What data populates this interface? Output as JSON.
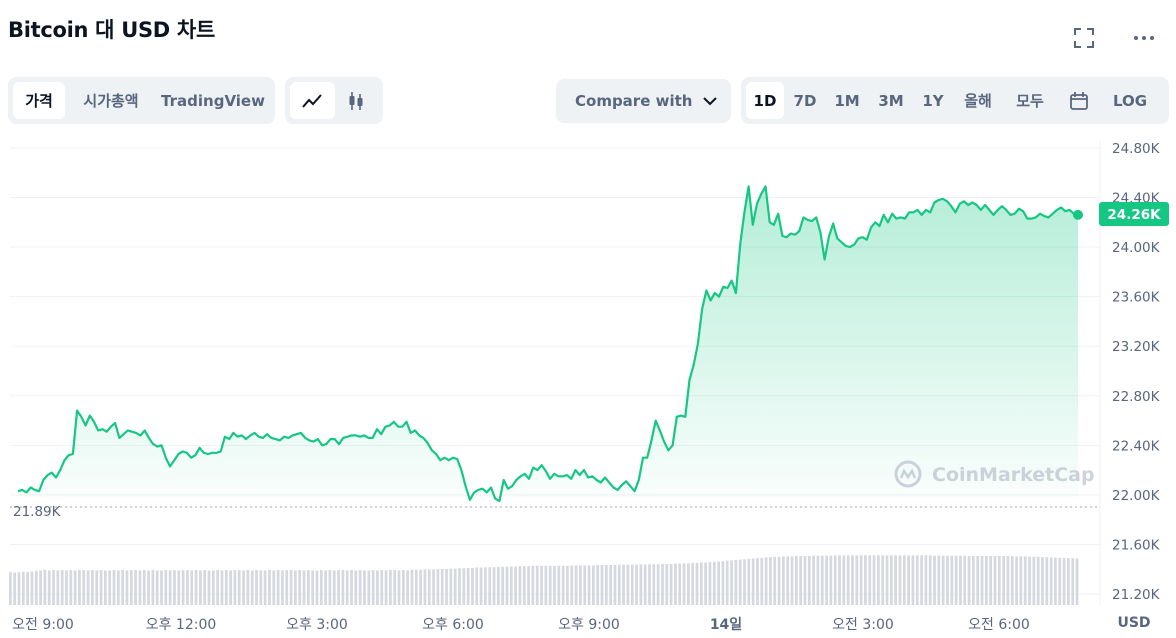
{
  "header": {
    "title": "Bitcoin 대 USD 차트"
  },
  "icons": {
    "fullscreen": "fullscreen-icon",
    "more": "more-dots-icon",
    "calendar": "calendar-icon",
    "line": "line-chart-icon",
    "candle": "candlestick-icon",
    "chevron": "chevron-down-icon"
  },
  "tabs": {
    "price": "가격",
    "marketcap": "시가총액",
    "tradingview": "TradingView"
  },
  "compare": {
    "label": "Compare with"
  },
  "ranges": [
    "1D",
    "7D",
    "1M",
    "3M",
    "1Y",
    "올해",
    "모두"
  ],
  "log_label": "LOG",
  "watermark": "CoinMarketCap",
  "colors": {
    "line": "#16c784",
    "fill_top": "#bdeed5",
    "badge": "#16c784",
    "text_muted": "#58667e"
  },
  "chart_data": {
    "type": "line",
    "x_ticks": [
      "오전 9:00",
      "오후 12:00",
      "오후 3:00",
      "오후 6:00",
      "오후 9:00",
      "14일",
      "오전 3:00",
      "오전 6:00"
    ],
    "y_ticks": [
      "24.80K",
      "24.40K",
      "24.00K",
      "23.60K",
      "23.20K",
      "22.80K",
      "22.40K",
      "22.00K",
      "21.60K",
      "21.20K"
    ],
    "ylim": [
      21.2,
      24.8
    ],
    "currency_label": "USD",
    "current_value_label": "24.26K",
    "min_value_label": "21.89K",
    "series": [
      {
        "price_k": [
          22.03,
          22.04,
          22.02,
          22.06,
          22.04,
          22.03,
          22.12,
          22.16,
          22.18,
          22.14,
          22.2,
          22.28,
          22.32,
          22.33,
          22.68,
          22.63,
          22.56,
          22.64,
          22.59,
          22.52,
          22.53,
          22.51,
          22.55,
          22.58,
          22.46,
          22.49,
          22.52,
          22.51,
          22.5,
          22.48,
          22.52,
          22.46,
          22.41,
          22.39,
          22.4,
          22.3,
          22.23,
          22.28,
          22.33,
          22.35,
          22.34,
          22.3,
          22.32,
          22.38,
          22.34,
          22.33,
          22.34,
          22.34,
          22.35,
          22.47,
          22.45,
          22.5,
          22.47,
          22.48,
          22.45,
          22.48,
          22.5,
          22.47,
          22.46,
          22.49,
          22.46,
          22.45,
          22.44,
          22.47,
          22.46,
          22.48,
          22.49,
          22.5,
          22.46,
          22.44,
          22.43,
          22.45,
          22.4,
          22.41,
          22.45,
          22.45,
          22.41,
          22.46,
          22.47,
          22.48,
          22.48,
          22.47,
          22.48,
          22.46,
          22.46,
          22.53,
          22.49,
          22.55,
          22.56,
          22.59,
          22.55,
          22.55,
          22.59,
          22.5,
          22.52,
          22.48,
          22.46,
          22.42,
          22.36,
          22.33,
          22.28,
          22.3,
          22.28,
          22.3,
          22.29,
          22.2,
          22.07,
          21.96,
          22.02,
          22.04,
          22.05,
          22.02,
          22.06,
          21.97,
          21.95,
          22.12,
          22.05,
          22.07,
          22.12,
          22.15,
          22.17,
          22.13,
          22.22,
          22.2,
          22.24,
          22.19,
          22.13,
          22.17,
          22.15,
          22.15,
          22.16,
          22.13,
          22.2,
          22.16,
          22.2,
          22.14,
          22.15,
          22.12,
          22.1,
          22.14,
          22.1,
          22.06,
          22.04,
          22.08,
          22.11,
          22.07,
          22.03,
          22.12,
          22.3,
          22.3,
          22.44,
          22.6,
          22.52,
          22.43,
          22.36,
          22.4,
          22.63,
          22.64,
          22.63,
          22.93,
          23.05,
          23.22,
          23.5,
          23.65,
          23.57,
          23.63,
          23.6,
          23.68,
          23.67,
          23.73,
          23.63,
          24.02,
          24.28,
          24.49,
          24.18,
          24.35,
          24.43,
          24.49,
          24.2,
          24.18,
          24.27,
          24.09,
          24.08,
          24.11,
          24.1,
          24.13,
          24.24,
          24.22,
          24.21,
          24.24,
          24.12,
          23.9,
          24.08,
          24.19,
          24.07,
          24.04,
          24.01,
          24.0,
          24.02,
          24.07,
          24.08,
          24.06,
          24.16,
          24.2,
          24.17,
          24.26,
          24.2,
          24.27,
          24.23,
          24.24,
          24.23,
          24.28,
          24.28,
          24.3,
          24.26,
          24.3,
          24.28,
          24.36,
          24.38,
          24.39,
          24.37,
          24.33,
          24.28,
          24.35,
          24.37,
          24.34,
          24.36,
          24.34,
          24.3,
          24.34,
          24.3,
          24.26,
          24.3,
          24.33,
          24.3,
          24.26,
          24.27,
          24.31,
          24.29,
          24.23,
          24.23,
          24.24,
          24.27,
          24.25,
          24.24,
          24.27,
          24.3,
          24.32,
          24.29,
          24.3,
          24.27,
          24.26
        ]
      },
      {
        "volume_rel": [
          0.91,
          0.9,
          0.91,
          0.92,
          0.92,
          0.93,
          0.95,
          0.96,
          0.98,
          0.96,
          0.97,
          0.96,
          0.97,
          0.96,
          0.97,
          0.96,
          0.97,
          0.97,
          0.96,
          0.97,
          0.96,
          0.97,
          0.96,
          0.96,
          0.97,
          0.96,
          0.97,
          0.96,
          0.97,
          0.97,
          0.96,
          0.97,
          0.96,
          0.97,
          0.96,
          0.96,
          0.97,
          0.96,
          0.97,
          0.96,
          0.97,
          0.97,
          0.96,
          0.97,
          0.96,
          0.97,
          0.96,
          0.96,
          0.97,
          0.96,
          0.97,
          0.96,
          0.97,
          0.97,
          0.96,
          0.97,
          0.96,
          0.97,
          0.96,
          0.96,
          0.97,
          0.96,
          0.97,
          0.96,
          0.97,
          0.97,
          0.96,
          0.97,
          0.96,
          0.97,
          0.96,
          0.96,
          0.97,
          0.96,
          0.97,
          0.96,
          0.97,
          0.97,
          0.96,
          0.97,
          0.96,
          0.97,
          0.96,
          0.96,
          0.97,
          0.96,
          0.97,
          0.96,
          0.97,
          0.97,
          0.96,
          0.97,
          0.96,
          0.98,
          0.98,
          0.98,
          0.99,
          0.99,
          0.99,
          1.0,
          1.0,
          1.0,
          1.01,
          1.01,
          1.02,
          1.02,
          1.03,
          1.03,
          1.04,
          1.04,
          1.05,
          1.05,
          1.05,
          1.06,
          1.06,
          1.07,
          1.07,
          1.07,
          1.08,
          1.08,
          1.08,
          1.09,
          1.09,
          1.09,
          1.09,
          1.09,
          1.09,
          1.09,
          1.09,
          1.09,
          1.1,
          1.1,
          1.1,
          1.1,
          1.1,
          1.1,
          1.11,
          1.11,
          1.11,
          1.11,
          1.11,
          1.12,
          1.12,
          1.12,
          1.12,
          1.12,
          1.13,
          1.13,
          1.13,
          1.13,
          1.13,
          1.14,
          1.14,
          1.14,
          1.15,
          1.15,
          1.16,
          1.16,
          1.17,
          1.17,
          1.18,
          1.18,
          1.19,
          1.2,
          1.21,
          1.22,
          1.23,
          1.24,
          1.25,
          1.26,
          1.27,
          1.28,
          1.29,
          1.3,
          1.31,
          1.32,
          1.33,
          1.34,
          1.34,
          1.35,
          1.35,
          1.35,
          1.36,
          1.36,
          1.36,
          1.36,
          1.37,
          1.37,
          1.37,
          1.37,
          1.37,
          1.38,
          1.38,
          1.38,
          1.38,
          1.38,
          1.38,
          1.38,
          1.38,
          1.38,
          1.38,
          1.38,
          1.38,
          1.38,
          1.38,
          1.38,
          1.38,
          1.38,
          1.38,
          1.38,
          1.38,
          1.38,
          1.38,
          1.38,
          1.37,
          1.37,
          1.37,
          1.37,
          1.37,
          1.37,
          1.37,
          1.37,
          1.36,
          1.36,
          1.36,
          1.36,
          1.36,
          1.36,
          1.36,
          1.36,
          1.36,
          1.36,
          1.36,
          1.35,
          1.35,
          1.35,
          1.34,
          1.34,
          1.34,
          1.33,
          1.33,
          1.32,
          1.32,
          1.31,
          1.31,
          1.3,
          1.3,
          1.29
        ]
      }
    ]
  }
}
